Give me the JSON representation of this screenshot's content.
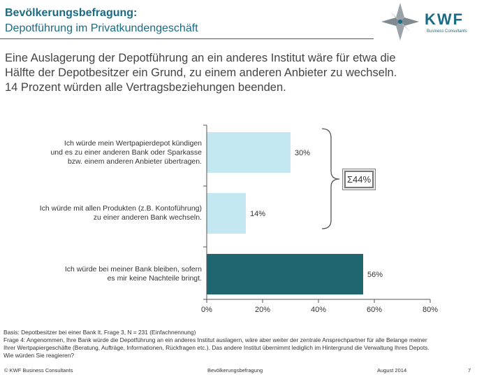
{
  "header": {
    "title": "Bevölkerungsbefragung:",
    "subtitle": "Depotführung im Privatkundengeschäft",
    "logo_text": "KWF",
    "logo_subtext": "Business Consultants"
  },
  "lead": {
    "lines": [
      "Eine Auslagerung der Depotführung an ein anderes Institut wäre für etwa die",
      "Hälfte der Depotbesitzer ein Grund, zu einem anderen Anbieter zu wechseln.",
      "14 Prozent würden alle Vertragsbeziehungen beenden."
    ]
  },
  "chart_data": {
    "type": "bar",
    "orientation": "horizontal",
    "categories": [
      [
        "Ich würde mein Wertpapierdepot kündigen",
        "und es zu einer anderen Bank oder Sparkasse",
        "bzw. einem anderen Anbieter übertragen."
      ],
      [
        "Ich würde mit allen Produkten (z.B. Kontoführung)",
        "zu einer anderen Bank wechseln."
      ],
      [
        "Ich würde bei meiner Bank bleiben, sofern",
        "es mir keine Nachteile bringt."
      ]
    ],
    "values": [
      30,
      14,
      56
    ],
    "value_labels": [
      "30%",
      "14%",
      "56%"
    ],
    "colors": [
      "#c3e8f1",
      "#c3e8f1",
      "#1f6670"
    ],
    "xlim": [
      0,
      80
    ],
    "xticks": [
      0,
      20,
      40,
      60,
      80
    ],
    "xtick_labels": [
      "0%",
      "20%",
      "40%",
      "60%",
      "80%"
    ],
    "grid": false,
    "annotation": {
      "text": "Σ44%",
      "brackets_categories": [
        0,
        1
      ]
    }
  },
  "notes": {
    "lines": [
      "Basis: Depotbesitzer bei einer Bank lt. Frage 3, N = 231 (Einfachnennung)",
      "Frage 4: Angenommen, Ihre Bank würde die Depotführung an ein anderes Institut auslagern, wäre aber weiter der zentrale Ansprechpartner für alle Belange meiner",
      "Ihrer Wertpapiergeschäfte (Beratung, Aufträge, Informationen, Rückfragen etc.). Das andere Institut übernimmt lediglich im Hintergrund die Verwaltung Ihres Depots.",
      "Wie würden Sie reagieren?"
    ]
  },
  "footer": {
    "copyright": "© KWF Business Consultants",
    "center": "Bevölkerungsbefragung",
    "date": "August 2014",
    "page": "7"
  }
}
